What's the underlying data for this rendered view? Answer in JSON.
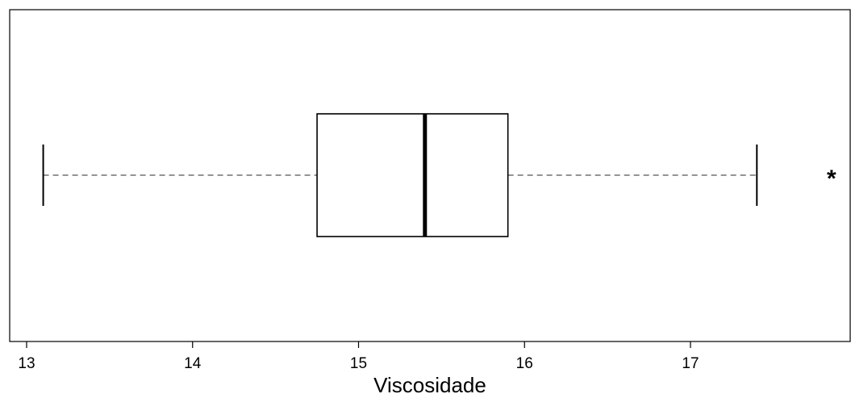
{
  "chart_data": {
    "type": "boxplot",
    "orientation": "horizontal",
    "xlabel": "Viscosidade",
    "xlim": [
      13.0,
      18.0
    ],
    "xticks": [
      13,
      14,
      15,
      16,
      17
    ],
    "xtick_labels": [
      "13",
      "14",
      "15",
      "16",
      "17"
    ],
    "box": {
      "whisker_low": 13.1,
      "q1": 14.75,
      "median": 15.4,
      "q3": 15.9,
      "whisker_high": 17.4
    },
    "outliers": [
      17.85
    ],
    "outlier_symbol": "*",
    "grid": false,
    "colors": {
      "box_fill": "#ffffff",
      "stroke": "#000000",
      "whisker_line": "#555555"
    }
  }
}
